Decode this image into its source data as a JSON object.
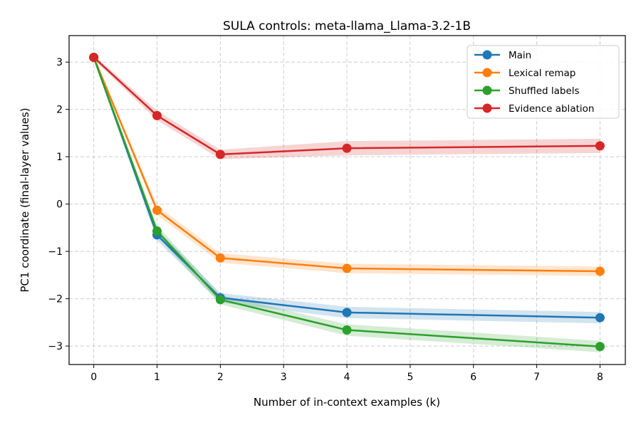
{
  "chart_data": {
    "type": "line",
    "title": "SULA controls: meta-llama_Llama-3.2-1B",
    "xlabel": "Number of in-context examples (k)",
    "ylabel": "PC1 coordinate (final-layer values)",
    "xlim": [
      -0.39,
      8.4
    ],
    "ylim": [
      -3.39,
      3.56
    ],
    "xticks": [
      0,
      1,
      2,
      3,
      4,
      5,
      6,
      7,
      8
    ],
    "yticks": [
      -3,
      -2,
      -1,
      0,
      1,
      2,
      3
    ],
    "grid": true,
    "legend_position": "top-right",
    "x": [
      0,
      1,
      2,
      4,
      8
    ],
    "series": [
      {
        "name": "Main",
        "color": "#1f77b4",
        "values": [
          3.1,
          -0.65,
          -1.98,
          -2.29,
          -2.4
        ],
        "band": [
          0.03,
          0.12,
          0.1,
          0.12,
          0.12
        ]
      },
      {
        "name": "Lexical remap",
        "color": "#ff7f0e",
        "values": [
          3.1,
          -0.13,
          -1.14,
          -1.36,
          -1.42
        ],
        "band": [
          0.03,
          0.1,
          0.1,
          0.1,
          0.1
        ]
      },
      {
        "name": "Shuffled labels",
        "color": "#2ca02c",
        "values": [
          3.1,
          -0.57,
          -2.02,
          -2.66,
          -3.01
        ],
        "band": [
          0.03,
          0.12,
          0.1,
          0.12,
          0.12
        ]
      },
      {
        "name": "Evidence ablation",
        "color": "#d62728",
        "values": [
          3.1,
          1.87,
          1.05,
          1.18,
          1.23
        ],
        "band": [
          0.05,
          0.1,
          0.1,
          0.15,
          0.15
        ]
      }
    ]
  }
}
